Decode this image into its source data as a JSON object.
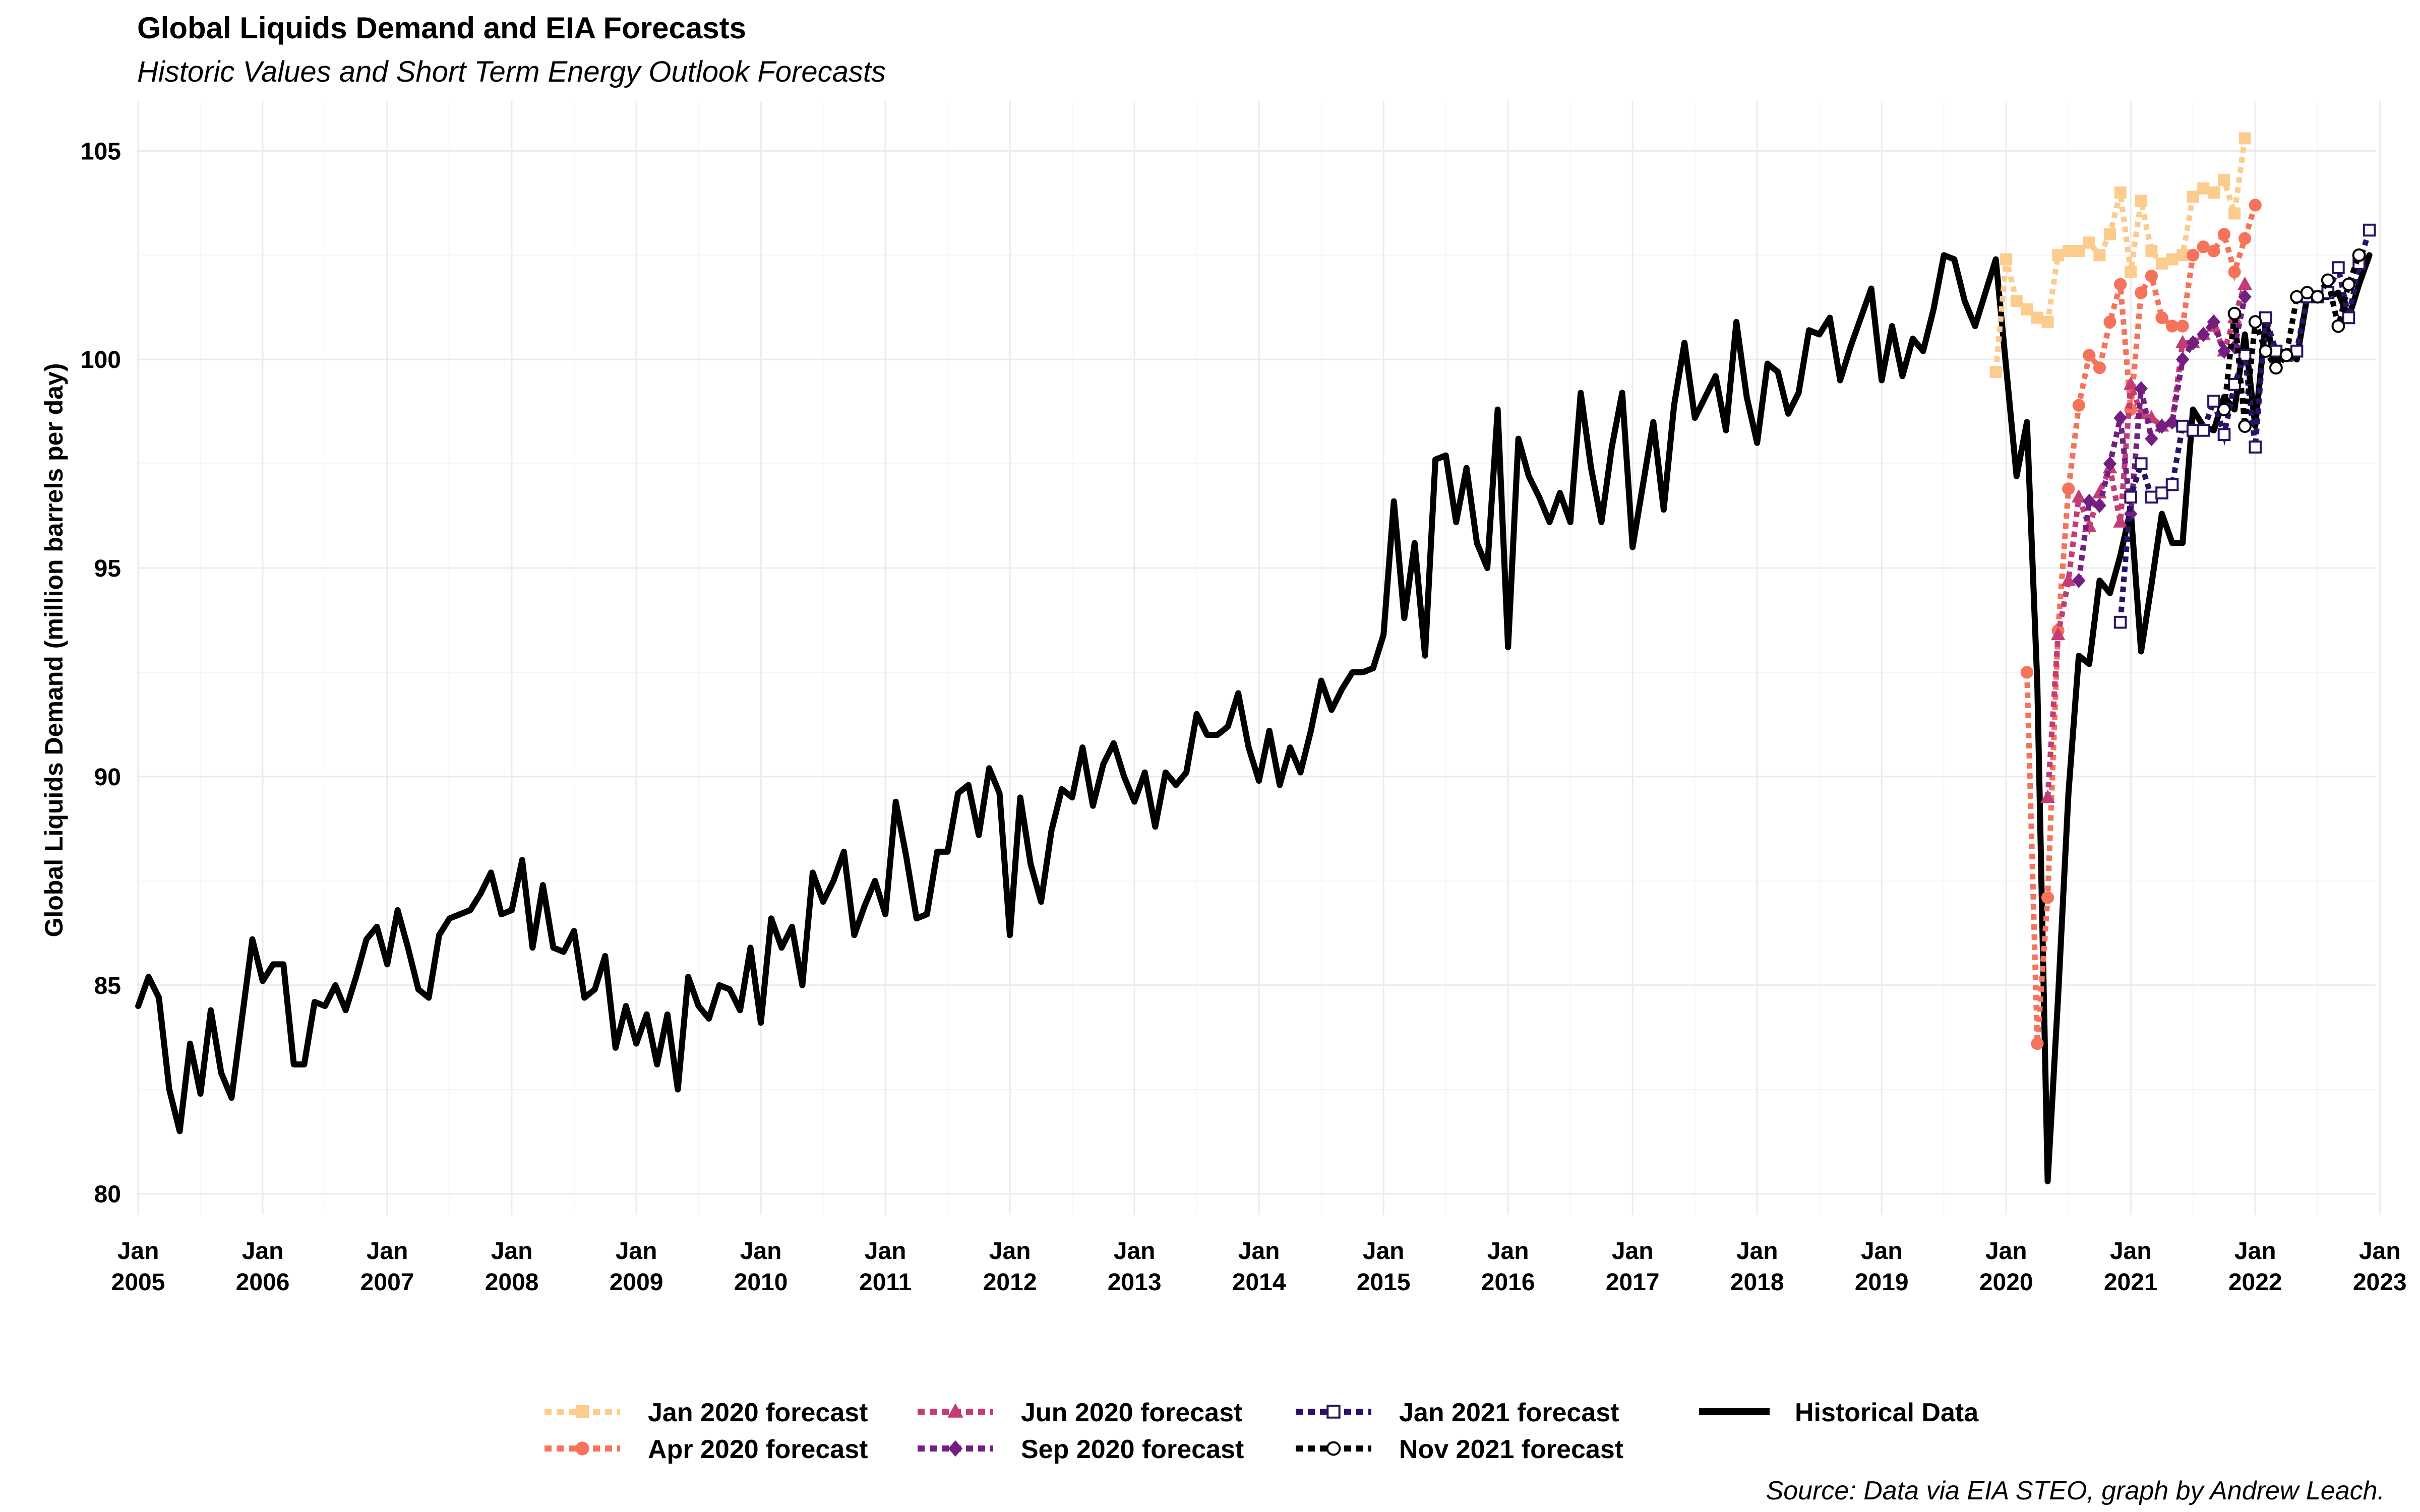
{
  "chart_data": {
    "type": "line",
    "title": "Global Liquids Demand and EIA Forecasts",
    "subtitle": "Historic Values and Short Term Energy Outlook Forecasts",
    "xlabel": "",
    "ylabel": "Global Liquids Demand (million barrels per day)",
    "caption": "Source: Data via EIA STEO, graph by Andrew Leach.",
    "xlim": [
      "2005-01",
      "2022-12"
    ],
    "ylim": [
      79.5,
      106.2
    ],
    "y_ticks": [
      80,
      85,
      90,
      95,
      100,
      105
    ],
    "x_ticks": [
      {
        "date": "2005-01",
        "l1": "Jan",
        "l2": "2005"
      },
      {
        "date": "2006-01",
        "l1": "Jan",
        "l2": "2006"
      },
      {
        "date": "2007-01",
        "l1": "Jan",
        "l2": "2007"
      },
      {
        "date": "2008-01",
        "l1": "Jan",
        "l2": "2008"
      },
      {
        "date": "2009-01",
        "l1": "Jan",
        "l2": "2009"
      },
      {
        "date": "2010-01",
        "l1": "Jan",
        "l2": "2010"
      },
      {
        "date": "2011-01",
        "l1": "Jan",
        "l2": "2011"
      },
      {
        "date": "2012-01",
        "l1": "Jan",
        "l2": "2012"
      },
      {
        "date": "2013-01",
        "l1": "Jan",
        "l2": "2013"
      },
      {
        "date": "2014-01",
        "l1": "Jan",
        "l2": "2014"
      },
      {
        "date": "2015-01",
        "l1": "Jan",
        "l2": "2015"
      },
      {
        "date": "2016-01",
        "l1": "Jan",
        "l2": "2016"
      },
      {
        "date": "2017-01",
        "l1": "Jan",
        "l2": "2017"
      },
      {
        "date": "2018-01",
        "l1": "Jan",
        "l2": "2018"
      },
      {
        "date": "2019-01",
        "l1": "Jan",
        "l2": "2019"
      },
      {
        "date": "2020-01",
        "l1": "Jan",
        "l2": "2020"
      },
      {
        "date": "2021-01",
        "l1": "Jan",
        "l2": "2021"
      },
      {
        "date": "2022-01",
        "l1": "Jan",
        "l2": "2022"
      },
      {
        "date": "2023-01",
        "l1": "Jan",
        "l2": "2023"
      }
    ],
    "grid": true,
    "legend_position": "bottom",
    "historical": {
      "name": "Historical Data",
      "color": "#000000",
      "start": "2005-01",
      "values": [
        84.5,
        85.2,
        84.7,
        82.5,
        81.5,
        83.6,
        82.4,
        84.4,
        82.9,
        82.3,
        84.2,
        86.1,
        85.1,
        85.5,
        85.5,
        83.1,
        83.1,
        84.6,
        84.5,
        85.0,
        84.4,
        85.2,
        86.1,
        86.4,
        85.5,
        86.8,
        85.9,
        84.9,
        84.7,
        86.2,
        86.6,
        86.7,
        86.8,
        87.2,
        87.7,
        86.7,
        86.8,
        88.0,
        85.9,
        87.4,
        85.9,
        85.8,
        86.3,
        84.7,
        84.9,
        85.7,
        83.5,
        84.5,
        83.6,
        84.3,
        83.1,
        84.3,
        82.5,
        85.2,
        84.5,
        84.2,
        85.0,
        84.9,
        84.4,
        85.9,
        84.1,
        86.6,
        85.9,
        86.4,
        85.0,
        87.7,
        87.0,
        87.5,
        88.2,
        86.2,
        86.9,
        87.5,
        86.7,
        89.4,
        88.1,
        86.6,
        86.7,
        88.2,
        88.2,
        89.6,
        89.8,
        88.6,
        90.2,
        89.6,
        86.2,
        89.5,
        87.9,
        87.0,
        88.7,
        89.7,
        89.5,
        90.7,
        89.3,
        90.3,
        90.8,
        90.0,
        89.4,
        90.1,
        88.8,
        90.1,
        89.8,
        90.1,
        91.5,
        91.0,
        91.0,
        91.2,
        92.0,
        90.7,
        89.9,
        91.1,
        89.8,
        90.7,
        90.1,
        91.1,
        92.3,
        91.6,
        92.1,
        92.5,
        92.5,
        92.6,
        93.4,
        96.6,
        93.8,
        95.6,
        92.9,
        97.6,
        97.7,
        96.1,
        97.4,
        95.6,
        95.0,
        98.8,
        93.1,
        98.1,
        97.2,
        96.7,
        96.1,
        96.8,
        96.1,
        99.2,
        97.4,
        96.1,
        97.9,
        99.2,
        95.5,
        97.0,
        98.5,
        96.4,
        98.9,
        100.4,
        98.6,
        99.1,
        99.6,
        98.3,
        100.9,
        99.1,
        98.0,
        99.9,
        99.7,
        98.7,
        99.2,
        100.7,
        100.6,
        101.0,
        99.5,
        100.3,
        101.0,
        101.7,
        99.5,
        100.8,
        99.6,
        100.5,
        100.2,
        101.2,
        102.5,
        102.4,
        101.4,
        100.8,
        101.6,
        102.4,
        99.8,
        97.2,
        98.5,
        92.2,
        80.3,
        84.7,
        89.6,
        92.9,
        92.7,
        94.7,
        94.4,
        95.3,
        96.4,
        93.0,
        94.6,
        96.3,
        95.6,
        95.6,
        98.8,
        98.4,
        98.3,
        99.1,
        98.8,
        100.6,
        98.4,
        100.9,
        99.9,
        100.2,
        100.0,
        101.5,
        101.5,
        101.5,
        101.6,
        101.0,
        101.8,
        102.5
      ]
    },
    "series": [
      {
        "name": "Jan 2020 forecast",
        "color": "#FCCB8E",
        "marker": "square-filled",
        "start": "2019-12",
        "values": [
          99.7,
          102.4,
          101.4,
          101.2,
          101.0,
          100.9,
          102.5,
          102.6,
          102.6,
          102.8,
          102.5,
          103.0,
          104.0,
          102.1,
          103.8,
          102.6,
          102.3,
          102.4,
          102.5,
          103.9,
          104.1,
          104.0,
          104.3,
          103.5,
          105.3
        ]
      },
      {
        "name": "Apr 2020 forecast",
        "color": "#F4735A",
        "marker": "circle-filled",
        "start": "2020-03",
        "values": [
          92.5,
          83.6,
          87.1,
          93.5,
          96.9,
          98.9,
          100.1,
          99.8,
          100.9,
          101.8,
          98.8,
          101.6,
          102.0,
          101.0,
          100.8,
          100.8,
          102.5,
          102.7,
          102.6,
          103.0,
          102.1,
          102.9,
          103.7
        ]
      },
      {
        "name": "Jun 2020 forecast",
        "color": "#C43C75",
        "marker": "triangle-filled",
        "start": "2020-05",
        "values": [
          89.5,
          93.4,
          94.7,
          96.7,
          96.0,
          96.8,
          97.4,
          96.1,
          99.4,
          98.7,
          98.6,
          98.4,
          98.5,
          100.4,
          100.4,
          100.6,
          100.8,
          100.2,
          101.0,
          101.8
        ]
      },
      {
        "name": "Sep 2020 forecast",
        "color": "#731F81",
        "marker": "diamond-filled",
        "start": "2020-08",
        "values": [
          94.7,
          96.6,
          96.5,
          97.5,
          98.6,
          96.3,
          99.3,
          98.1,
          98.4,
          98.5,
          100.0,
          100.4,
          100.6,
          100.9,
          100.2,
          100.3,
          101.5
        ]
      },
      {
        "name": "Jan 2021 forecast",
        "color": "#2A1266",
        "marker": "square-open",
        "start": "2020-12",
        "values": [
          93.7,
          96.7,
          97.5,
          96.7,
          96.8,
          97.0,
          98.4,
          98.3,
          98.3,
          99.0,
          98.2,
          99.4,
          100.1,
          97.9,
          101.0,
          100.2,
          100.1,
          100.2,
          101.5,
          101.5,
          101.6,
          102.2,
          101.0,
          102.3,
          103.1
        ]
      },
      {
        "name": "Nov 2021 forecast",
        "color": "#000000",
        "marker": "circle-open",
        "start": "2021-10",
        "values": [
          98.8,
          101.1,
          98.4,
          100.9,
          100.2,
          99.8,
          100.1,
          101.5,
          101.6,
          101.5,
          101.9,
          100.8,
          101.8,
          102.5
        ]
      }
    ]
  }
}
